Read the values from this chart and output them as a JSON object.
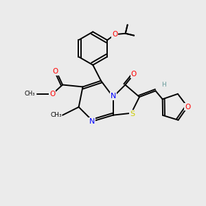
{
  "bg_color": "#ebebeb",
  "atom_colors": {
    "N": "#0000ff",
    "O": "#ff0000",
    "S": "#cccc00",
    "H": "#669999"
  },
  "figsize": [
    3.0,
    3.0
  ],
  "dpi": 100,
  "lw": 1.4
}
